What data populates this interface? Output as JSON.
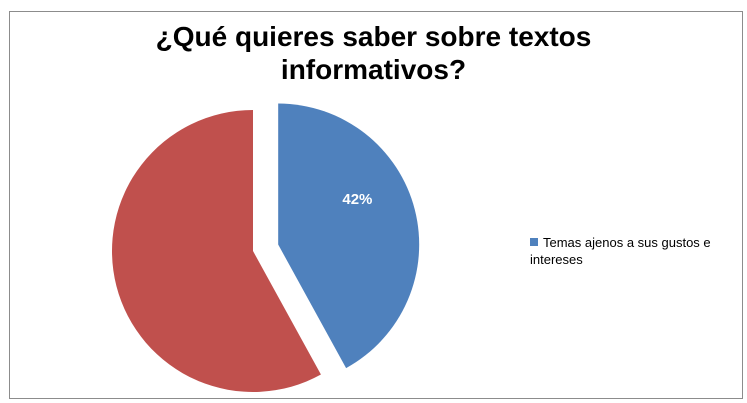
{
  "chart_data": {
    "type": "pie",
    "title_lines": [
      "¿Qué quieres saber sobre textos",
      "informativos?"
    ],
    "slices": [
      {
        "name": "Temas ajenos a sus gustos e intereses",
        "value": 42,
        "label": "42%",
        "color": "#4F81BD",
        "exploded": true
      },
      {
        "name": "",
        "value": 58,
        "label": "",
        "color": "#C0504D",
        "exploded": false
      }
    ],
    "legend": {
      "placement": "right",
      "entries": [
        {
          "lines": [
            "Temas ajenos a sus gustos e",
            "intereses"
          ],
          "color": "#4F81BD"
        }
      ]
    }
  }
}
